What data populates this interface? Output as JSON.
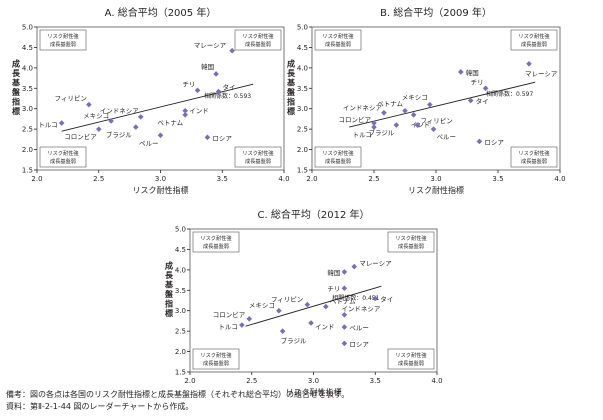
{
  "notes": {
    "remark": "備考：図の各点は各国のリスク耐性指標と成長基盤指標（それぞれ総合平均）の組合せを表す。",
    "source": "資料：第Ⅱ-2-1-44 図のレーダーチャートから作成。"
  },
  "colors": {
    "marker": "#7a6fb4",
    "axis": "#231f20",
    "frame": "#555555"
  },
  "chart_data": [
    {
      "type": "scatter",
      "title": "A.  総合平均（2005 年）",
      "xlabel": "リスク耐性指標",
      "ylabel": "成長基盤指標",
      "xlim": [
        2.0,
        4.0
      ],
      "ylim": [
        1.5,
        5.0
      ],
      "xticks": [
        "2.0",
        "2.5",
        "3.0",
        "3.5",
        "4.0"
      ],
      "yticks": [
        "1.5",
        "2.0",
        "2.5",
        "3.0",
        "3.5",
        "4.0",
        "4.5",
        "5.0"
      ],
      "quadrant_labels": [
        "リスク耐性強",
        "成長基盤弱"
      ],
      "correlation_label": "相関係数：0.593",
      "trend": {
        "x": [
          2.2,
          3.75
        ],
        "y": [
          2.45,
          3.6
        ]
      },
      "points": [
        {
          "name": "マレーシア",
          "x": 3.58,
          "y": 4.42
        },
        {
          "name": "韓国",
          "x": 3.45,
          "y": 3.85
        },
        {
          "name": "チリ",
          "x": 3.3,
          "y": 3.45
        },
        {
          "name": "タイ",
          "x": 3.47,
          "y": 3.42
        },
        {
          "name": "フィリピン",
          "x": 2.42,
          "y": 3.1
        },
        {
          "name": "インドネシア",
          "x": 2.84,
          "y": 2.8
        },
        {
          "name": "インド",
          "x": 3.2,
          "y": 2.95
        },
        {
          "name": "ベトナム",
          "x": 3.2,
          "y": 2.85
        },
        {
          "name": "トルコ",
          "x": 2.2,
          "y": 2.65
        },
        {
          "name": "メキシコ",
          "x": 2.6,
          "y": 2.7
        },
        {
          "name": "コロンビア",
          "x": 2.5,
          "y": 2.5
        },
        {
          "name": "ブラジル",
          "x": 2.8,
          "y": 2.55
        },
        {
          "name": "ペルー",
          "x": 3.0,
          "y": 2.35
        },
        {
          "name": "ロシア",
          "x": 3.38,
          "y": 2.3
        }
      ]
    },
    {
      "type": "scatter",
      "title": "B.  総合平均（2009 年）",
      "xlabel": "リスク耐性指標",
      "ylabel": "成長基盤指標",
      "xlim": [
        2.0,
        4.0
      ],
      "ylim": [
        1.5,
        5.0
      ],
      "xticks": [
        "2.0",
        "2.5",
        "3.0",
        "3.5",
        "4.0"
      ],
      "yticks": [
        "1.5",
        "2.0",
        "2.5",
        "3.0",
        "3.5",
        "4.0",
        "4.5",
        "5.0"
      ],
      "quadrant_labels": [
        "リスク耐性強",
        "成長基盤弱"
      ],
      "correlation_label": "相関係数：0.597",
      "trend": {
        "x": [
          2.3,
          3.8
        ],
        "y": [
          2.55,
          3.65
        ]
      },
      "points": [
        {
          "name": "韓国",
          "x": 3.2,
          "y": 3.9
        },
        {
          "name": "マレーシア",
          "x": 3.75,
          "y": 4.1
        },
        {
          "name": "チリ",
          "x": 3.4,
          "y": 3.5
        },
        {
          "name": "メキシコ",
          "x": 2.95,
          "y": 3.1
        },
        {
          "name": "タイ",
          "x": 3.28,
          "y": 3.2
        },
        {
          "name": "ベトナム",
          "x": 2.75,
          "y": 2.95
        },
        {
          "name": "インドネシア",
          "x": 2.58,
          "y": 2.9
        },
        {
          "name": "インド",
          "x": 2.82,
          "y": 2.85
        },
        {
          "name": "コロンビア",
          "x": 2.5,
          "y": 2.65
        },
        {
          "name": "トルコ",
          "x": 2.5,
          "y": 2.55
        },
        {
          "name": "ブラジル",
          "x": 2.68,
          "y": 2.6
        },
        {
          "name": "フィリピン",
          "x": 2.85,
          "y": 2.6
        },
        {
          "name": "ペルー",
          "x": 2.98,
          "y": 2.5
        },
        {
          "name": "ロシア",
          "x": 3.35,
          "y": 2.2
        }
      ]
    },
    {
      "type": "scatter",
      "title": "C.  総合平均（2012 年）",
      "xlabel": "リスク耐性指標",
      "ylabel": "成長基盤指標",
      "xlim": [
        2.0,
        4.0
      ],
      "ylim": [
        1.5,
        5.0
      ],
      "xticks": [
        "2.0",
        "2.5",
        "3.0",
        "3.5",
        "4.0"
      ],
      "yticks": [
        "1.5",
        "2.0",
        "2.5",
        "3.0",
        "3.5",
        "4.0",
        "4.5",
        "5.0"
      ],
      "quadrant_labels": [
        "リスク耐性強",
        "成長基盤弱"
      ],
      "correlation_label": "相関係数：0.451",
      "trend": {
        "x": [
          2.45,
          3.55
        ],
        "y": [
          2.62,
          3.6
        ]
      },
      "points": [
        {
          "name": "マレーシア",
          "x": 3.33,
          "y": 4.08
        },
        {
          "name": "韓国",
          "x": 3.25,
          "y": 3.95
        },
        {
          "name": "チリ",
          "x": 3.25,
          "y": 3.55
        },
        {
          "name": "タイ",
          "x": 3.5,
          "y": 3.3
        },
        {
          "name": "メキシコ",
          "x": 2.72,
          "y": 3.0
        },
        {
          "name": "フィリピン",
          "x": 2.95,
          "y": 3.15
        },
        {
          "name": "ベトナム",
          "x": 3.1,
          "y": 3.1
        },
        {
          "name": "インドネシア",
          "x": 3.25,
          "y": 2.9
        },
        {
          "name": "コロンビア",
          "x": 2.48,
          "y": 2.8
        },
        {
          "name": "トルコ",
          "x": 2.42,
          "y": 2.65
        },
        {
          "name": "インド",
          "x": 2.98,
          "y": 2.7
        },
        {
          "name": "ブラジル",
          "x": 2.75,
          "y": 2.5
        },
        {
          "name": "ペルー",
          "x": 3.25,
          "y": 2.6
        },
        {
          "name": "ロシア",
          "x": 3.25,
          "y": 2.2
        }
      ]
    }
  ]
}
